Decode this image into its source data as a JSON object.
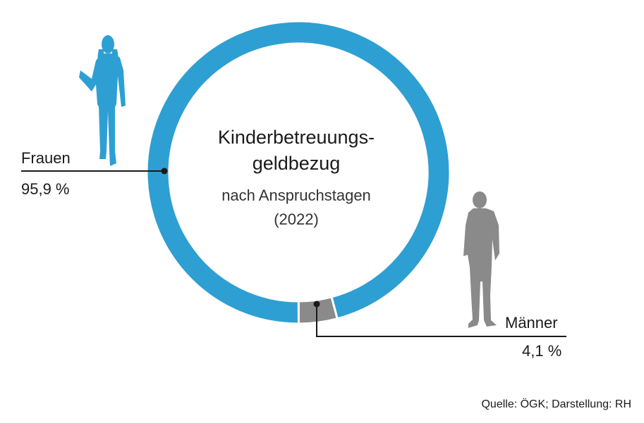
{
  "chart_data": {
    "type": "donut",
    "title_lines": [
      "Kinderbetreuungs-",
      "geldbezug"
    ],
    "subtitle_lines": [
      "nach Anspruchstagen",
      "(2022)"
    ],
    "slices": [
      {
        "name": "Frauen",
        "label": "95,9 %",
        "value": 95.9,
        "color": "#2e9fd2"
      },
      {
        "name": "Männer",
        "label": "4,1 %",
        "value": 4.1,
        "color": "#8a8a8a"
      }
    ],
    "legend": "none"
  },
  "source": "Quelle: ÖGK; Darstellung: RH"
}
